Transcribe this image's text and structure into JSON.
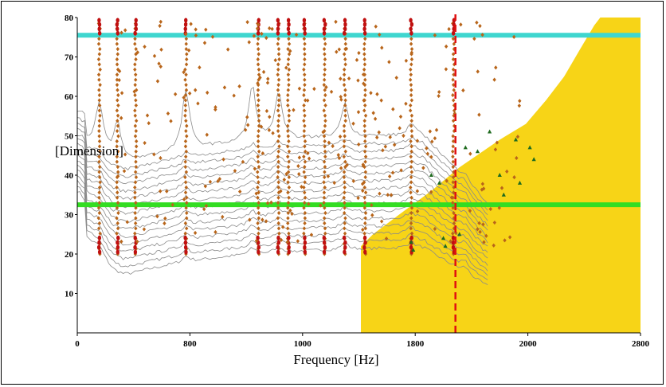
{
  "chart_data": {
    "type": "scatter",
    "title": "",
    "xlabel": "Frequency [Hz]",
    "ylabel": "[Dimension]",
    "xlim": [
      0,
      2800
    ],
    "ylim": [
      0,
      80
    ],
    "x_ticks": [
      {
        "value": 0,
        "label": "0"
      },
      {
        "value": 560,
        "label": "800"
      },
      {
        "value": 1120,
        "label": "1000"
      },
      {
        "value": 1680,
        "label": "1800"
      },
      {
        "value": 2240,
        "label": "2000"
      },
      {
        "value": 2800,
        "label": "2800"
      }
    ],
    "y_ticks": [
      10,
      20,
      30,
      40,
      50,
      60,
      70,
      80
    ],
    "grid": false,
    "colors": {
      "stable_region": "#f7d417",
      "upper_line": "#3fd6cf",
      "lower_line": "#33dd22",
      "marker_line": "#e01010",
      "curves": "#8a8a8a",
      "diamond": "#b8651a",
      "triangle": "#1f6b1f",
      "dot": "#c01010"
    },
    "horizontal_lines": [
      {
        "y": 75.5,
        "color_key": "upper_line"
      },
      {
        "y": 32.5,
        "color_key": "lower_line"
      }
    ],
    "vertical_line": {
      "x": 1880,
      "style": "dashed"
    },
    "stable_region_boundary": [
      [
        1410,
        0
      ],
      [
        1410,
        22
      ],
      [
        1470,
        25
      ],
      [
        1600,
        30
      ],
      [
        1760,
        36
      ],
      [
        1900,
        42
      ],
      [
        2100,
        49
      ],
      [
        2230,
        53
      ],
      [
        2330,
        59
      ],
      [
        2420,
        65
      ],
      [
        2500,
        72
      ],
      [
        2570,
        78
      ],
      [
        2600,
        80
      ],
      [
        2800,
        80
      ],
      [
        2800,
        0
      ]
    ],
    "modes": [
      {
        "x": 110,
        "peak": 63
      },
      {
        "x": 200,
        "peak": 62
      },
      {
        "x": 540,
        "peak": 70
      },
      {
        "x": 870,
        "peak": 68
      },
      {
        "x": 1000,
        "peak": 64
      },
      {
        "x": 1330,
        "peak": 58
      },
      {
        "x": 1660,
        "peak": 48
      },
      {
        "x": 1930,
        "peak": 46
      }
    ],
    "stable_pole_columns": [
      110,
      200,
      290,
      540,
      900,
      1000,
      1050,
      1130,
      1230,
      1330,
      1430,
      1660,
      1870
    ],
    "triangles": [
      [
        1660,
        23
      ],
      [
        1670,
        21
      ],
      [
        1820,
        24
      ],
      [
        1900,
        25
      ],
      [
        1930,
        47
      ],
      [
        2100,
        40
      ],
      [
        2200,
        38
      ],
      [
        2250,
        47
      ],
      [
        2270,
        44
      ],
      [
        2180,
        49
      ],
      [
        2050,
        51
      ],
      [
        1990,
        46
      ],
      [
        1800,
        38
      ],
      [
        1760,
        40
      ],
      [
        2120,
        35
      ],
      [
        1830,
        22
      ]
    ]
  }
}
